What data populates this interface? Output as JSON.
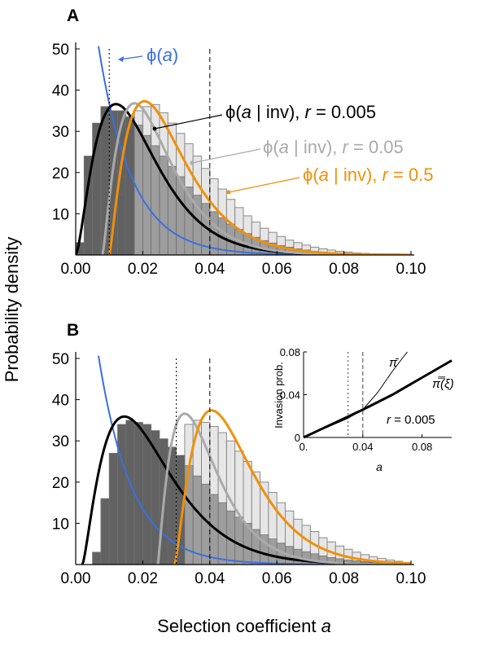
{
  "figure": {
    "ylabel": "Probability density",
    "xlabel_prefix": "Selection coefficient ",
    "xlabel_var": "a"
  },
  "colors": {
    "blue": "#3a6fe0",
    "black": "#000000",
    "gray": "#aaaaaa",
    "orange": "#f0900a",
    "hist_dark": "#5a5a5a",
    "hist_light": "#e6e6e6",
    "hist_light_stroke": "#8a8a8a"
  },
  "chart_data": [
    {
      "type": "area",
      "panel": "A",
      "x_ticks": [
        "0.00",
        "0.02",
        "0.04",
        "0.06",
        "0.08",
        "0.10"
      ],
      "y_ticks": [
        "10",
        "20",
        "30",
        "40",
        "50"
      ],
      "xlim": [
        0,
        0.1
      ],
      "ylim": [
        0,
        50
      ],
      "vlines": [
        0.01,
        0.04
      ],
      "curves": [
        {
          "key": "phi",
          "color": "blue",
          "kind": "phi",
          "mean": 0.01
        },
        {
          "key": "r0005",
          "color": "black",
          "kind": "gamma",
          "x0": 0.0,
          "peak": 0.012,
          "height": 36.6,
          "shape": 2.6
        },
        {
          "key": "r005",
          "color": "gray",
          "kind": "gamma",
          "x0": 0.008,
          "peak": 0.0175,
          "height": 36.8,
          "shape": 2.3
        },
        {
          "key": "r05",
          "color": "orange",
          "kind": "gamma",
          "x0": 0.01,
          "peak": 0.0205,
          "height": 37.3,
          "shape": 2.3
        }
      ],
      "hist_light": [
        0,
        0,
        0,
        0,
        4,
        14,
        30,
        35,
        36,
        36.5,
        34.5,
        32,
        29.5,
        27,
        24,
        21,
        18.5,
        16,
        13.5,
        11.5,
        9.5,
        8,
        6.5,
        5.5,
        4.5,
        3.6,
        3,
        2.4,
        1.9,
        1.5,
        1.2,
        0.9,
        0.7,
        0.5,
        0.4,
        0.3,
        0.2,
        0.15,
        0.1,
        0.05
      ],
      "hist_dark": [
        3,
        24,
        32,
        36,
        35,
        35,
        33.5,
        31.5,
        29,
        26.5,
        24,
        21.5,
        19,
        16.5,
        14.5,
        12.5,
        10.5,
        9,
        7.5,
        6.2,
        5.2,
        4.3,
        3.5,
        2.9,
        2.3,
        1.9,
        1.5,
        1.2,
        0.9,
        0.7,
        0.55,
        0.42,
        0.32,
        0.24,
        0.18,
        0.13,
        0.1,
        0.07,
        0.05,
        0.03
      ],
      "labels": {
        "panel": "A",
        "phi": {
          "pre": "ϕ(",
          "var": "a",
          "post": ")"
        },
        "r0005": {
          "pre": "ϕ(",
          "var": "a",
          "mid": " | inv), ",
          "rvar": "r",
          "post": " = 0.005"
        },
        "r005": {
          "pre": "ϕ(",
          "var": "a",
          "mid": " | inv), ",
          "rvar": "r",
          "post": " = 0.05"
        },
        "r05": {
          "pre": "ϕ(",
          "var": "a",
          "mid": " | inv), ",
          "rvar": "r",
          "post": " = 0.5"
        }
      }
    },
    {
      "type": "area",
      "panel": "B",
      "x_ticks": [
        "0.00",
        "0.02",
        "0.04",
        "0.06",
        "0.08",
        "0.10"
      ],
      "y_ticks": [
        "10",
        "20",
        "30",
        "40",
        "50"
      ],
      "xlim": [
        0,
        0.1
      ],
      "ylim": [
        0,
        50
      ],
      "vlines": [
        0.03,
        0.04
      ],
      "curves": [
        {
          "key": "phi",
          "color": "blue",
          "kind": "phi",
          "mean": 0.01
        },
        {
          "key": "r0005",
          "color": "black",
          "kind": "gamma",
          "x0": 0.002,
          "peak": 0.0145,
          "height": 35.9,
          "shape": 2.4
        },
        {
          "key": "r005",
          "color": "gray",
          "kind": "gamma",
          "x0": 0.0245,
          "peak": 0.0325,
          "height": 36.6,
          "shape": 2.2
        },
        {
          "key": "r05",
          "color": "orange",
          "kind": "gamma",
          "x0": 0.0295,
          "peak": 0.0405,
          "height": 37.4,
          "shape": 2.4
        }
      ],
      "hist_light": [
        0,
        0,
        0,
        0,
        0,
        0,
        0,
        0,
        0,
        0,
        0,
        0,
        6,
        34,
        35,
        34.5,
        33.5,
        32,
        30,
        27.5,
        25,
        22.5,
        20,
        17.5,
        15,
        13,
        11,
        9.5,
        8,
        6.5,
        5.5,
        4.5,
        3.7,
        3,
        2.4,
        1.9,
        1.5,
        1.1,
        0.8,
        0.5
      ],
      "hist_dark": [
        0,
        0,
        3,
        16,
        27,
        34,
        35,
        34.5,
        34,
        32.5,
        30.5,
        28.5,
        26.5,
        24,
        21.5,
        19.5,
        17,
        15,
        13,
        11.5,
        10,
        8.5,
        7.2,
        6.2,
        5.2,
        4.4,
        3.7,
        3.1,
        2.6,
        2.1,
        1.7,
        1.4,
        1.1,
        0.9,
        0.7,
        0.55,
        0.42,
        0.3,
        0.2,
        0.12
      ],
      "labels": {
        "panel": "B"
      },
      "inset": {
        "ylabel": "Invasion prob.",
        "xlabel": "a",
        "x_ticks": [
          "0.",
          "0.04",
          "0.08"
        ],
        "y_ticks": [
          "0",
          "0.04",
          "0.08"
        ],
        "xlim": [
          0,
          0.1
        ],
        "ylim": [
          0,
          0.08
        ],
        "vlines": [
          0.03,
          0.04
        ],
        "label_pibar": "π̄",
        "label_pixi": "π̿(ξ)",
        "r_label": {
          "rvar": "r",
          "post": " = 0.005"
        },
        "series": [
          {
            "name": "π̄",
            "x": [
              0,
              0.02,
              0.03,
              0.04,
              0.05,
              0.06,
              0.07
            ],
            "y": [
              0,
              0.012,
              0.018,
              0.026,
              0.042,
              0.062,
              0.08
            ]
          },
          {
            "name": "π̿(ξ)",
            "x": [
              0,
              0.02,
              0.04,
              0.06,
              0.08,
              0.1
            ],
            "y": [
              0,
              0.013,
              0.026,
              0.04,
              0.056,
              0.072
            ]
          }
        ]
      }
    }
  ]
}
